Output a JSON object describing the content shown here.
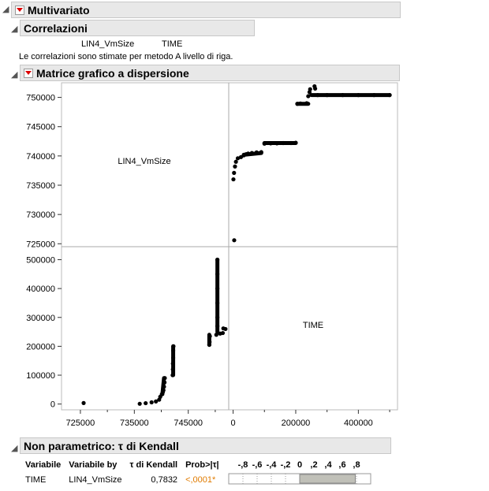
{
  "multivariate": {
    "title": "Multivariato"
  },
  "correlations": {
    "title": "Correlazioni",
    "columns": [
      "LIN4_VmSize",
      "TIME"
    ],
    "note": "Le correlazioni sono stimate per metodo A livello di riga."
  },
  "scatter": {
    "title": "Matrice grafico a dispersione",
    "diag_labels": [
      "LIN4_VmSize",
      "TIME"
    ]
  },
  "chart_data": {
    "type": "scatter",
    "variables": [
      "LIN4_VmSize",
      "TIME"
    ],
    "x_lin4": {
      "min": 721500,
      "max": 752500,
      "ticks": [
        "725000",
        "735000",
        "745000"
      ]
    },
    "y_lin4": {
      "min": 724500,
      "max": 752500,
      "ticks": [
        "750000",
        "745000",
        "740000",
        "735000",
        "730000",
        "725000"
      ]
    },
    "x_time": {
      "min": -14000,
      "max": 525000,
      "ticks": [
        "0",
        "200000",
        "400000"
      ]
    },
    "y_time": {
      "min": -20000,
      "max": 545000,
      "ticks": [
        "500000",
        "400000",
        "300000",
        "200000",
        "100000",
        "0"
      ]
    },
    "points_time_vs_vmsize": [
      [
        3500,
        725600
      ],
      [
        1000,
        736000
      ],
      [
        3000,
        737100
      ],
      [
        6000,
        738200
      ],
      [
        9000,
        739000
      ],
      [
        15000,
        739600
      ],
      [
        25000,
        739800
      ],
      [
        34000,
        740100
      ],
      [
        42000,
        740300
      ],
      [
        48000,
        740400
      ],
      [
        60000,
        740500
      ],
      [
        75000,
        740600
      ],
      [
        90000,
        740650
      ],
      [
        100000,
        742100
      ],
      [
        120000,
        742150
      ],
      [
        140000,
        742150
      ],
      [
        160000,
        742200
      ],
      [
        185000,
        742200
      ],
      [
        200000,
        742250
      ],
      [
        205000,
        748900
      ],
      [
        215000,
        748950
      ],
      [
        235000,
        749000
      ],
      [
        240000,
        750200
      ],
      [
        244000,
        750900
      ],
      [
        246000,
        751400
      ],
      [
        260000,
        751900
      ],
      [
        262000,
        751500
      ],
      [
        270000,
        750400
      ],
      [
        300000,
        750400
      ],
      [
        350000,
        750400
      ],
      [
        400000,
        750400
      ],
      [
        450000,
        750400
      ],
      [
        500000,
        750400
      ]
    ],
    "segments_time_vs_vmsize": [
      [
        34000,
        740200,
        90000,
        740500
      ],
      [
        100000,
        742200,
        200000,
        742200
      ],
      [
        205000,
        748900,
        240000,
        748900
      ],
      [
        250000,
        750400,
        500000,
        750400
      ]
    ]
  },
  "kendall": {
    "title": "Non parametrico: τ di Kendall",
    "headers": [
      "Variabile",
      "Variabile by",
      "τ di Kendall",
      "Prob>|τ|"
    ],
    "scale_labels": [
      "-,8",
      "-,6",
      "-,4",
      "-,2",
      "0",
      ",2",
      ",4",
      ",6",
      ",8"
    ],
    "row": {
      "var": "TIME",
      "by": "LIN4_VmSize",
      "tau": "0,7832",
      "prob": "<,0001*",
      "tau_value": 0.7832
    },
    "prob_color": "#e07b00"
  }
}
